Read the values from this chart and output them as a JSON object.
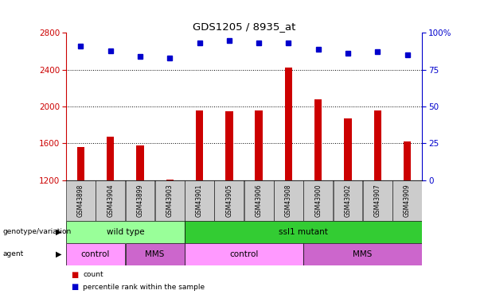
{
  "title": "GDS1205 / 8935_at",
  "samples": [
    "GSM43898",
    "GSM43904",
    "GSM43899",
    "GSM43903",
    "GSM43901",
    "GSM43905",
    "GSM43906",
    "GSM43908",
    "GSM43900",
    "GSM43902",
    "GSM43907",
    "GSM43909"
  ],
  "counts": [
    1560,
    1670,
    1580,
    1210,
    1960,
    1950,
    1960,
    2420,
    2080,
    1870,
    1960,
    1620
  ],
  "percentiles": [
    91,
    88,
    84,
    83,
    93,
    95,
    93,
    93,
    89,
    86,
    87,
    85
  ],
  "ylim_left": [
    1200,
    2800
  ],
  "ylim_right": [
    0,
    100
  ],
  "yticks_left": [
    1200,
    1600,
    2000,
    2400,
    2800
  ],
  "yticks_right": [
    0,
    25,
    50,
    75,
    100
  ],
  "bar_color": "#cc0000",
  "dot_color": "#0000cc",
  "genotype_groups": [
    {
      "label": "wild type",
      "start": 0,
      "end": 3,
      "color": "#99ff99"
    },
    {
      "label": "ssl1 mutant",
      "start": 4,
      "end": 11,
      "color": "#33cc33"
    }
  ],
  "agent_groups": [
    {
      "label": "control",
      "start": 0,
      "end": 1,
      "color": "#ff99ff"
    },
    {
      "label": "MMS",
      "start": 2,
      "end": 3,
      "color": "#cc66cc"
    },
    {
      "label": "control",
      "start": 4,
      "end": 7,
      "color": "#ff99ff"
    },
    {
      "label": "MMS",
      "start": 8,
      "end": 11,
      "color": "#cc66cc"
    }
  ],
  "legend_items": [
    {
      "label": "count",
      "color": "#cc0000"
    },
    {
      "label": "percentile rank within the sample",
      "color": "#0000cc"
    }
  ],
  "left_axis_color": "#cc0000",
  "right_axis_color": "#0000cc",
  "tick_label_bg": "#cccccc",
  "genotype_label": "genotype/variation",
  "agent_label": "agent",
  "bar_width": 0.25,
  "dot_size": 4
}
